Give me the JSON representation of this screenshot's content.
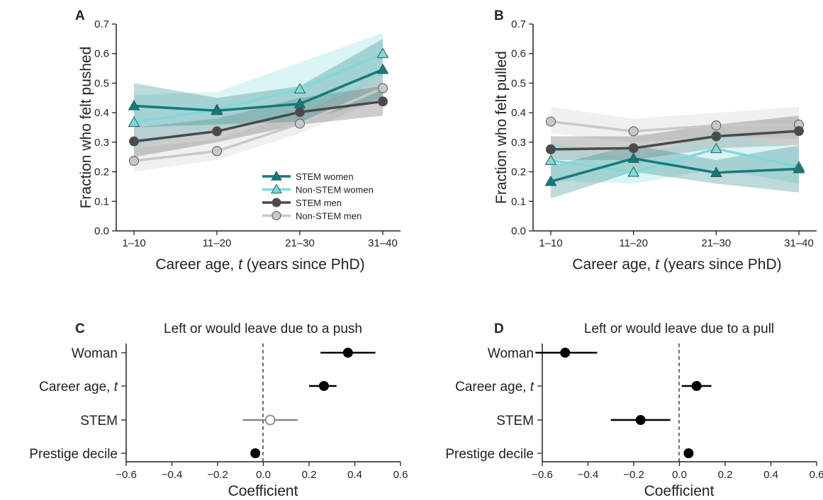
{
  "chart_data": [
    {
      "panel": "A",
      "type": "line",
      "xlabel": "Career age, t (years since PhD)",
      "ylabel": "Fraction who felt pushed",
      "categories": [
        "1–10",
        "11–20",
        "21–30",
        "31–40"
      ],
      "ylim": [
        0,
        0.7
      ],
      "yticks": [
        "0.0",
        "0.1",
        "0.2",
        "0.3",
        "0.4",
        "0.5",
        "0.6",
        "0.7"
      ],
      "legend": "center-right",
      "series": [
        {
          "name": "Non-STEM men",
          "color": "#c8c8c8",
          "marker": "circle",
          "values": [
            0.237,
            0.27,
            0.363,
            0.483
          ],
          "lower": [
            0.2,
            0.24,
            0.33,
            0.45
          ],
          "upper": [
            0.28,
            0.31,
            0.4,
            0.52
          ]
        },
        {
          "name": "STEM men",
          "color": "#4a4a4a",
          "marker": "circle",
          "values": [
            0.303,
            0.337,
            0.402,
            0.438
          ],
          "lower": [
            0.25,
            0.3,
            0.36,
            0.39
          ],
          "upper": [
            0.35,
            0.38,
            0.45,
            0.49
          ]
        },
        {
          "name": "Non-STEM women",
          "color": "#7fd9d9",
          "marker": "triangle",
          "values": [
            0.367,
            0.41,
            0.48,
            0.6
          ],
          "lower": [
            0.28,
            0.34,
            0.39,
            0.52
          ],
          "upper": [
            0.46,
            0.47,
            0.57,
            0.67
          ]
        },
        {
          "name": "STEM women",
          "color": "#157a7a",
          "marker": "triangle",
          "values": [
            0.423,
            0.407,
            0.43,
            0.546
          ],
          "lower": [
            0.35,
            0.36,
            0.37,
            0.45
          ],
          "upper": [
            0.5,
            0.45,
            0.49,
            0.65
          ]
        }
      ]
    },
    {
      "panel": "B",
      "type": "line",
      "xlabel": "Career age, t (years since PhD)",
      "ylabel": "Fraction who felt pulled",
      "categories": [
        "1–10",
        "11–20",
        "21–30",
        "31–40"
      ],
      "ylim": [
        0,
        0.7
      ],
      "yticks": [
        "0.0",
        "0.1",
        "0.2",
        "0.3",
        "0.4",
        "0.5",
        "0.6",
        "0.7"
      ],
      "series": [
        {
          "name": "Non-STEM men",
          "color": "#c8c8c8",
          "marker": "circle",
          "values": [
            0.37,
            0.337,
            0.357,
            0.36
          ],
          "lower": [
            0.33,
            0.3,
            0.32,
            0.31
          ],
          "upper": [
            0.42,
            0.38,
            0.4,
            0.42
          ]
        },
        {
          "name": "STEM men",
          "color": "#4a4a4a",
          "marker": "circle",
          "values": [
            0.276,
            0.28,
            0.32,
            0.338
          ],
          "lower": [
            0.24,
            0.24,
            0.28,
            0.29
          ],
          "upper": [
            0.32,
            0.32,
            0.36,
            0.39
          ]
        },
        {
          "name": "Non-STEM women",
          "color": "#7fd9d9",
          "marker": "triangle",
          "values": [
            0.238,
            0.198,
            0.278,
            0.217
          ],
          "lower": [
            0.17,
            0.16,
            0.21,
            0.16
          ],
          "upper": [
            0.3,
            0.24,
            0.34,
            0.28
          ]
        },
        {
          "name": "STEM women",
          "color": "#157a7a",
          "marker": "triangle",
          "values": [
            0.167,
            0.245,
            0.197,
            0.21
          ],
          "lower": [
            0.11,
            0.2,
            0.16,
            0.13
          ],
          "upper": [
            0.22,
            0.29,
            0.24,
            0.29
          ]
        }
      ]
    },
    {
      "panel": "C",
      "type": "scatter",
      "title": "Left or would leave due to a push",
      "xlabel": "Coefficient",
      "categories": [
        "Woman",
        "Career age, t",
        "STEM",
        "Prestige decile"
      ],
      "xlim": [
        -0.6,
        0.6
      ],
      "xticks": [
        "−0.6",
        "−0.4",
        "−0.2",
        "0.0",
        "0.2",
        "0.4",
        "0.6"
      ],
      "estimates": [
        0.37,
        0.265,
        0.03,
        -0.035
      ],
      "ci_lower": [
        0.25,
        0.2,
        -0.09,
        -0.05
      ],
      "ci_upper": [
        0.49,
        0.32,
        0.15,
        -0.02
      ],
      "significant": [
        true,
        true,
        false,
        true
      ]
    },
    {
      "panel": "D",
      "type": "scatter",
      "title": "Left or would leave due to a pull",
      "xlabel": "Coefficient",
      "categories": [
        "Woman",
        "Career age, t",
        "STEM",
        "Prestige decile"
      ],
      "xlim": [
        -0.6,
        0.6
      ],
      "xticks": [
        "−0.6",
        "−0.4",
        "−0.2",
        "0.0",
        "0.2",
        "0.4",
        "0.6"
      ],
      "estimates": [
        -0.5,
        0.075,
        -0.17,
        0.04
      ],
      "ci_lower": [
        -0.63,
        0.01,
        -0.3,
        0.02
      ],
      "ci_upper": [
        -0.36,
        0.14,
        -0.04,
        0.06
      ],
      "significant": [
        true,
        true,
        true,
        true
      ]
    }
  ]
}
